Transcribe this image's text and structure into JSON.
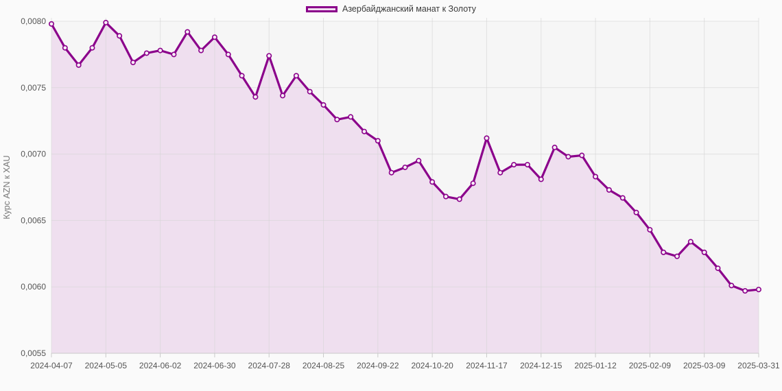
{
  "legend": {
    "label": "Азербайджанский манат к Золоту"
  },
  "chart_data": {
    "type": "area",
    "title": "",
    "xlabel": "",
    "ylabel": "Курс AZN к XAU",
    "series_name": "Азербайджанский манат к Золоту",
    "x": [
      "2024-04-07",
      "2024-04-14",
      "2024-04-21",
      "2024-04-28",
      "2024-05-05",
      "2024-05-12",
      "2024-05-19",
      "2024-05-26",
      "2024-06-02",
      "2024-06-09",
      "2024-06-16",
      "2024-06-23",
      "2024-06-30",
      "2024-07-07",
      "2024-07-14",
      "2024-07-21",
      "2024-07-28",
      "2024-08-04",
      "2024-08-11",
      "2024-08-18",
      "2024-08-25",
      "2024-09-01",
      "2024-09-08",
      "2024-09-15",
      "2024-09-22",
      "2024-09-29",
      "2024-10-06",
      "2024-10-13",
      "2024-10-20",
      "2024-10-27",
      "2024-11-03",
      "2024-11-10",
      "2024-11-17",
      "2024-11-24",
      "2024-12-01",
      "2024-12-08",
      "2024-12-15",
      "2024-12-22",
      "2024-12-29",
      "2025-01-05",
      "2025-01-12",
      "2025-01-19",
      "2025-01-26",
      "2025-02-02",
      "2025-02-09",
      "2025-02-16",
      "2025-02-23",
      "2025-03-02",
      "2025-03-09",
      "2025-03-16",
      "2025-03-23",
      "2025-03-30",
      "2025-03-31"
    ],
    "values": [
      0.00798,
      0.0078,
      0.00767,
      0.0078,
      0.00799,
      0.00789,
      0.00769,
      0.00776,
      0.00778,
      0.00775,
      0.00792,
      0.00778,
      0.00788,
      0.00775,
      0.00759,
      0.00743,
      0.00774,
      0.00744,
      0.00759,
      0.00747,
      0.00737,
      0.00726,
      0.00728,
      0.00717,
      0.0071,
      0.00686,
      0.0069,
      0.00695,
      0.00679,
      0.00668,
      0.00666,
      0.00678,
      0.00712,
      0.00686,
      0.00692,
      0.00692,
      0.00681,
      0.00705,
      0.00698,
      0.00699,
      0.00683,
      0.00673,
      0.00667,
      0.00656,
      0.00643,
      0.00626,
      0.00623,
      0.00634,
      0.00626,
      0.00614,
      0.00601,
      0.00597,
      0.00598
    ],
    "ylim": [
      0.0055,
      0.008
    ],
    "yticks": [
      0.008,
      0.0075,
      0.007,
      0.0065,
      0.006,
      0.0055
    ],
    "ytick_labels": [
      "0,0080",
      "0,0075",
      "0,0070",
      "0,0065",
      "0,0060",
      "0,0055"
    ],
    "xtick_indices": [
      0,
      4,
      8,
      12,
      16,
      20,
      24,
      28,
      32,
      36,
      40,
      44,
      48,
      52
    ],
    "grid": true,
    "legend_position": "top-center",
    "colors": {
      "line": "#8B008B",
      "fill": "#EFDFEF",
      "marker_fill": "#F6ECF6",
      "grid": "#D6D6D6",
      "axis_line": "#C9C9C9",
      "plot_bg": "#F6F6F6",
      "tick_text": "#555555",
      "axis_title_text": "#777777"
    }
  }
}
